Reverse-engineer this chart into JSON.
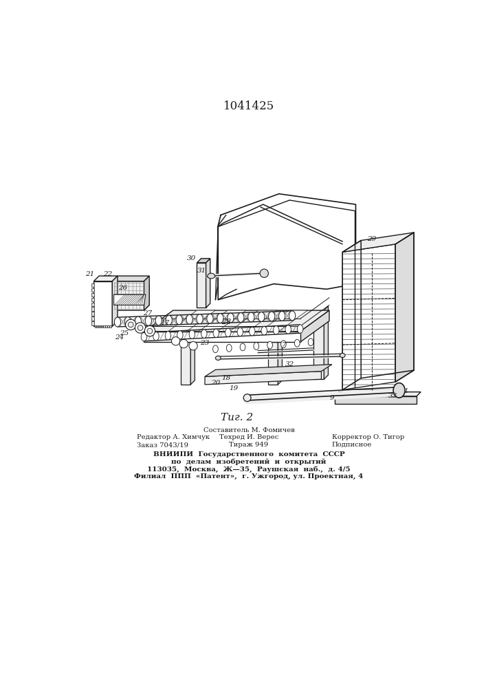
{
  "patent_number": "1041425",
  "figure_caption": "Τиг. 2",
  "background_color": "#ffffff",
  "line_color": "#1a1a1a",
  "footer_line1_left": "Редактор А. Химчук",
  "footer_line2_left": "Заказ 7043/19",
  "footer_line0_center": "Составитель М. Фомичев",
  "footer_line1_center": "Техред И. Верес",
  "footer_line2_center": "Тираж 949",
  "footer_line1_right": "Корректор О. Тигор",
  "footer_line2_right": "Подписное",
  "footer_vniiipi1": "ВНИИПИ  Государственного  комитета  СССР",
  "footer_vniiipi2": "по  делам  изобретений  и  открытий",
  "footer_vniiipi3": "113035,  Москва,  Ж—35,  Раушская  наб.,  д. 4/5",
  "footer_vniiipi4": "Филиал  ППП  «Патент»,  г. Ужгород, ул. Проектная, 4"
}
